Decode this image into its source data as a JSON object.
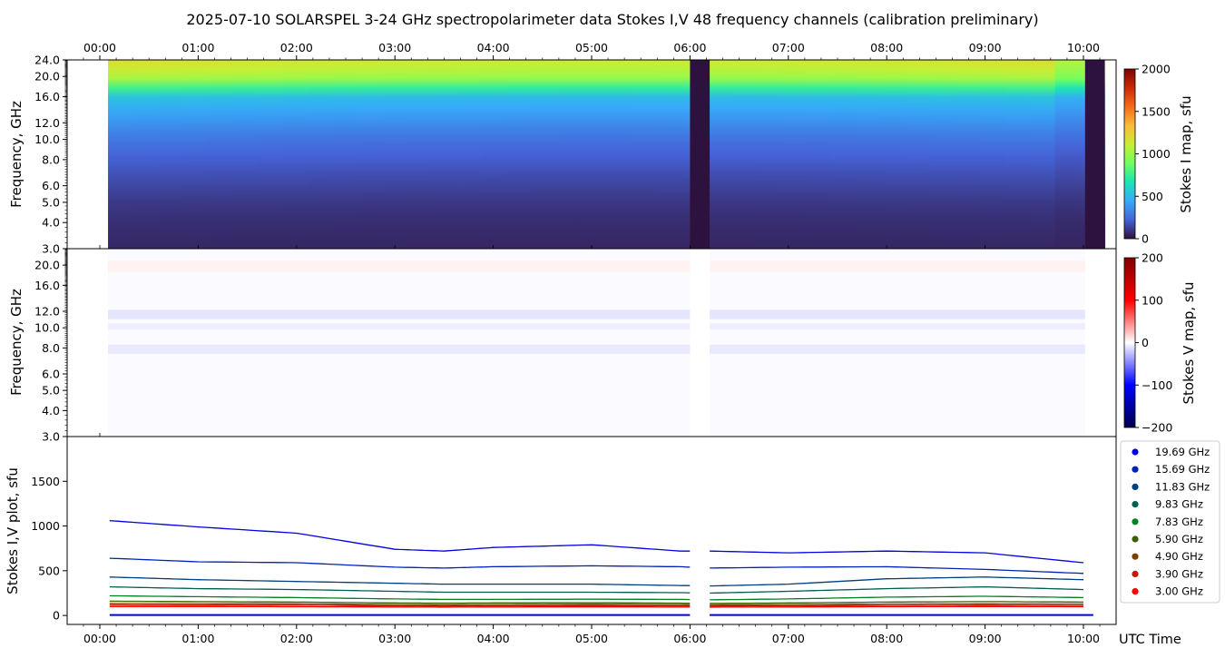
{
  "title": "2025-07-10  SOLARSPEL  3-24 GHz spectropolarimeter data   Stokes I,V   48 frequency channels   (calibration preliminary)",
  "time_ticks": [
    "00:00",
    "01:00",
    "02:00",
    "03:00",
    "04:00",
    "05:00",
    "06:00",
    "07:00",
    "08:00",
    "09:00",
    "10:00"
  ],
  "x_axis_label": "UTC Time",
  "colors": {
    "stokes_i_colormap": [
      "#30123b",
      "#4662d7",
      "#36aaf9",
      "#1ae4b6",
      "#72fe5e",
      "#c7ef34",
      "#fabb39",
      "#f66b19",
      "#cb2a04",
      "#7a0403"
    ],
    "stokes_v_colormap": [
      "#00004c",
      "#0000ff",
      "#ffffff",
      "#ff0000",
      "#800000"
    ],
    "data_gap": "#2d1240"
  },
  "chart_data": [
    {
      "type": "heatmap",
      "name": "Stokes I map",
      "ylabel": "Frequency, GHz",
      "yticks": [
        "3.0",
        "4.0",
        "5.0",
        "6.0",
        "8.0",
        "10.0",
        "12.0",
        "16.0",
        "20.0",
        "24.0"
      ],
      "yscale": "log",
      "ylim": [
        3.0,
        24.0
      ],
      "xlim": [
        "23:40",
        "10:20"
      ],
      "data_start": "00:05",
      "data_end": "10:13",
      "gaps": [
        [
          "06:00",
          "06:12"
        ],
        [
          "10:01",
          "10:13"
        ]
      ],
      "colorbar": {
        "label": "Stokes I map, sfu",
        "min": 0,
        "max": 2000,
        "ticks": [
          "0",
          "500",
          "1000",
          "1500",
          "2000"
        ]
      },
      "profile_ghz": [
        3,
        4,
        5,
        6,
        8,
        10,
        12,
        14,
        16,
        17,
        18,
        20,
        22,
        24
      ],
      "profile_sfu": [
        60,
        80,
        110,
        150,
        220,
        290,
        380,
        460,
        540,
        620,
        880,
        1080,
        1150,
        1200
      ]
    },
    {
      "type": "heatmap",
      "name": "Stokes V map",
      "ylabel": "Frequency, GHz",
      "yticks": [
        "3.0",
        "4.0",
        "5.0",
        "6.0",
        "8.0",
        "10.0",
        "12.0",
        "16.0",
        "20.0"
      ],
      "yscale": "log",
      "ylim": [
        3.0,
        24.0
      ],
      "colorbar": {
        "label": "Stokes V map, sfu",
        "min": -200,
        "max": 200,
        "ticks": [
          "−200",
          "−100",
          "0",
          "100",
          "200"
        ]
      },
      "bands_ghz": [
        [
          11.0,
          12.2,
          -12
        ],
        [
          9.8,
          10.5,
          -8
        ],
        [
          7.5,
          8.3,
          -10
        ],
        [
          18.5,
          21.0,
          6
        ]
      ]
    },
    {
      "type": "line",
      "name": "Stokes I,V plot",
      "ylabel": "Stokes I,V plot, sfu",
      "ylim": [
        -100,
        2000
      ],
      "yticks": [
        "0",
        "500",
        "1000",
        "1500"
      ],
      "x_hours": [
        0.1,
        1.0,
        2.0,
        3.0,
        3.5,
        4.0,
        5.0,
        5.9,
        6.2,
        7.0,
        8.0,
        9.0,
        10.0
      ],
      "series": [
        {
          "name": "19.69 GHz",
          "color": "#0000e0",
          "values": [
            1060,
            990,
            920,
            740,
            720,
            760,
            790,
            720,
            720,
            700,
            720,
            700,
            590
          ]
        },
        {
          "name": "15.69 GHz",
          "color": "#0022bb",
          "values": [
            640,
            600,
            590,
            540,
            530,
            545,
            555,
            545,
            530,
            540,
            545,
            515,
            470
          ]
        },
        {
          "name": "11.83 GHz",
          "color": "#003f7f",
          "values": [
            430,
            400,
            380,
            360,
            350,
            350,
            350,
            335,
            330,
            350,
            410,
            430,
            400
          ]
        },
        {
          "name": "9.83 GHz",
          "color": "#005f50",
          "values": [
            320,
            300,
            290,
            270,
            260,
            260,
            260,
            255,
            250,
            270,
            300,
            320,
            290
          ]
        },
        {
          "name": "7.83 GHz",
          "color": "#008020",
          "values": [
            220,
            210,
            200,
            185,
            180,
            180,
            182,
            180,
            175,
            185,
            205,
            215,
            200
          ]
        },
        {
          "name": "5.90 GHz",
          "color": "#3a5f00",
          "values": [
            160,
            155,
            150,
            140,
            138,
            140,
            142,
            138,
            135,
            140,
            150,
            155,
            150
          ]
        },
        {
          "name": "4.90 GHz",
          "color": "#7a4000",
          "values": [
            135,
            132,
            130,
            122,
            120,
            122,
            125,
            122,
            118,
            122,
            128,
            130,
            128
          ]
        },
        {
          "name": "3.90 GHz",
          "color": "#c01a00",
          "values": [
            118,
            116,
            115,
            108,
            105,
            108,
            110,
            108,
            105,
            108,
            112,
            115,
            112
          ]
        },
        {
          "name": "3.00 GHz",
          "color": "#ff0000",
          "values": [
            100,
            100,
            98,
            95,
            93,
            95,
            96,
            95,
            93,
            95,
            98,
            100,
            98
          ]
        }
      ],
      "v_series_value": 5
    }
  ]
}
